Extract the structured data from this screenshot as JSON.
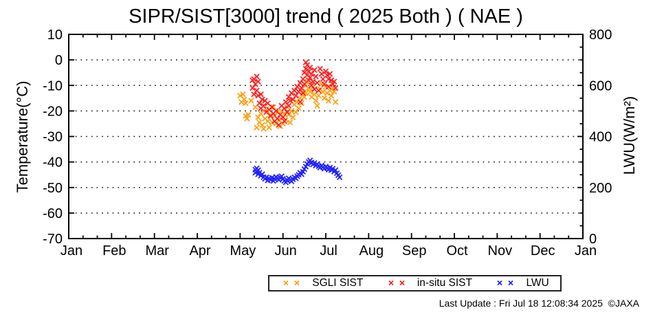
{
  "page": {
    "footer": "Last Update : Fri Jul 18 12:08:34 2025  ©JAXA"
  },
  "chart_data": {
    "type": "scatter",
    "title": "SIPR/SIST[3000] trend ( 2025 Both ) ( NAE )",
    "grid": "horizontal dotted lines at left-axis major ticks",
    "x_axis": {
      "label": "",
      "tick_labels": [
        "Jan",
        "Feb",
        "Mar",
        "Apr",
        "May",
        "Jun",
        "Jul",
        "Aug",
        "Sep",
        "Oct",
        "Nov",
        "Dec",
        "Jan"
      ],
      "minor_ticks_per_month": 2
    },
    "y_left_axis": {
      "label": "Temperature(°C)",
      "range": [
        -70,
        10
      ],
      "ticks": [
        10,
        0,
        -10,
        -20,
        -30,
        -40,
        -50,
        -60,
        -70
      ],
      "grid_at": [
        0,
        -10,
        -20,
        -30,
        -40,
        -50,
        -60
      ]
    },
    "y_right_axis": {
      "label": "LWU(W/m²)",
      "range": [
        0,
        800
      ],
      "labeled_ticks": [
        800,
        600,
        400,
        200,
        0
      ],
      "minor_tick_step": 50
    },
    "legend": {
      "position": "below-chart",
      "entries": [
        {
          "label": "SGLI SIST",
          "color": "#ffa014",
          "marker": "x"
        },
        {
          "label": "in-situ SIST",
          "color": "#ff2020",
          "marker": "x"
        },
        {
          "label": "LWU",
          "color": "#2222ff",
          "marker": "x"
        }
      ]
    },
    "series": [
      {
        "name": "SGLI SIST",
        "axis": "left",
        "marker": "x",
        "color": "#ffa014",
        "points": [
          [
            "May 1",
            -14
          ],
          [
            "May 2",
            -16.5
          ],
          [
            "May 3",
            -13.5
          ],
          [
            "May 4",
            -15.5
          ],
          [
            "May 5",
            -17
          ],
          [
            "May 5",
            -22
          ],
          [
            "May 6",
            -23
          ],
          [
            "May 7",
            -21.5
          ],
          [
            "May 9",
            -16
          ],
          [
            "May 12",
            -18.5
          ],
          [
            "May 13",
            -26.5
          ],
          [
            "May 14",
            -22.5
          ],
          [
            "May 15",
            -24.5
          ],
          [
            "May 16",
            -21
          ],
          [
            "May 17",
            -25.5
          ],
          [
            "May 18",
            -27
          ],
          [
            "May 19",
            -23
          ],
          [
            "May 20",
            -19.5
          ],
          [
            "May 21",
            -24
          ],
          [
            "May 22",
            -26.5
          ],
          [
            "May 23",
            -21.5
          ],
          [
            "May 24",
            -24.5
          ],
          [
            "May 25",
            -18.5
          ],
          [
            "May 26",
            -22
          ],
          [
            "May 27",
            -25
          ],
          [
            "May 28",
            -20.5
          ],
          [
            "May 29",
            -23.5
          ],
          [
            "May 30",
            -26
          ],
          [
            "May 31",
            -20
          ],
          [
            "Jun 1",
            -25
          ],
          [
            "Jun 2",
            -21
          ],
          [
            "Jun 3",
            -23.5
          ],
          [
            "Jun 4",
            -18.5
          ],
          [
            "Jun 5",
            -21.5
          ],
          [
            "Jun 6",
            -24.5
          ],
          [
            "Jun 7",
            -20
          ],
          [
            "Jun 8",
            -22.5
          ],
          [
            "Jun 9",
            -17.5
          ],
          [
            "Jun 10",
            -20.5
          ],
          [
            "Jun 11",
            -16.5
          ],
          [
            "Jun 12",
            -19
          ],
          [
            "Jun 13",
            -15
          ],
          [
            "Jun 14",
            -17
          ],
          [
            "Jun 15",
            -12.5
          ],
          [
            "Jun 16",
            -14.5
          ],
          [
            "Jun 17",
            -10
          ],
          [
            "Jun 17",
            -13
          ],
          [
            "Jun 18",
            -8.5
          ],
          [
            "Jun 19",
            -11
          ],
          [
            "Jun 20",
            -12.5
          ],
          [
            "Jun 21",
            -14.5
          ],
          [
            "Jun 22",
            -10.5
          ],
          [
            "Jun 23",
            -13.5
          ],
          [
            "Jun 24",
            -16
          ],
          [
            "Jun 25",
            -18
          ],
          [
            "Jun 26",
            -14
          ],
          [
            "Jun 27",
            -11.5
          ],
          [
            "Jun 28",
            -9.5
          ],
          [
            "Jun 29",
            -12.5
          ],
          [
            "Jun 30",
            -15
          ],
          [
            "Jul 1",
            -10.5
          ],
          [
            "Jul 2",
            -13
          ],
          [
            "Jul 3",
            -16
          ],
          [
            "Jul 4",
            -12
          ],
          [
            "Jul 5",
            -14
          ],
          [
            "Jul 6",
            -11
          ],
          [
            "Jul 7",
            -12.5
          ],
          [
            "Jul 8",
            -16.5
          ]
        ]
      },
      {
        "name": "in-situ SIST",
        "axis": "left",
        "marker": "x",
        "color": "#ff2020",
        "points": [
          [
            "May 10",
            -8
          ],
          [
            "May 10",
            -11
          ],
          [
            "May 11",
            -13.5
          ],
          [
            "May 11",
            -7.5
          ],
          [
            "May 12",
            -9.5
          ],
          [
            "May 13",
            -6.5
          ],
          [
            "May 13",
            -12
          ],
          [
            "May 14",
            -8.5
          ],
          [
            "May 14",
            -14
          ],
          [
            "May 15",
            -17
          ],
          [
            "May 16",
            -13.5
          ],
          [
            "May 16",
            -19
          ],
          [
            "May 17",
            -15.5
          ],
          [
            "May 18",
            -18
          ],
          [
            "May 19",
            -16
          ],
          [
            "May 20",
            -20.5
          ],
          [
            "May 21",
            -17
          ],
          [
            "May 22",
            -19.5
          ],
          [
            "May 23",
            -22
          ],
          [
            "May 24",
            -18.5
          ],
          [
            "May 25",
            -21
          ],
          [
            "May 26",
            -24
          ],
          [
            "May 27",
            -20
          ],
          [
            "May 28",
            -23
          ],
          [
            "May 29",
            -25.5
          ],
          [
            "May 30",
            -21.5
          ],
          [
            "May 31",
            -18
          ],
          [
            "Jun 1",
            -22.5
          ],
          [
            "Jun 2",
            -19
          ],
          [
            "Jun 2",
            -24
          ],
          [
            "Jun 3",
            -16.5
          ],
          [
            "Jun 4",
            -20.5
          ],
          [
            "Jun 5",
            -14.5
          ],
          [
            "Jun 5",
            -18
          ],
          [
            "Jun 6",
            -16
          ],
          [
            "Jun 7",
            -13
          ],
          [
            "Jun 8",
            -15.5
          ],
          [
            "Jun 9",
            -12
          ],
          [
            "Jun 10",
            -14
          ],
          [
            "Jun 11",
            -10.5
          ],
          [
            "Jun 12",
            -12.5
          ],
          [
            "Jun 13",
            -9
          ],
          [
            "Jun 13",
            -16.5
          ],
          [
            "Jun 14",
            -11
          ],
          [
            "Jun 15",
            -7.5
          ],
          [
            "Jun 15",
            -13
          ],
          [
            "Jun 16",
            -5
          ],
          [
            "Jun 16",
            -9.5
          ],
          [
            "Jun 17",
            -1
          ],
          [
            "Jun 17",
            -3.5
          ],
          [
            "Jun 18",
            -2
          ],
          [
            "Jun 18",
            -6
          ],
          [
            "Jun 19",
            -4.5
          ],
          [
            "Jun 19",
            -8
          ],
          [
            "Jun 20",
            -3
          ],
          [
            "Jun 20",
            -7
          ],
          [
            "Jun 21",
            -5.5
          ],
          [
            "Jun 21",
            -10
          ],
          [
            "Jun 22",
            -8.5
          ],
          [
            "Jun 23",
            -4
          ],
          [
            "Jun 23",
            -11.5
          ],
          [
            "Jun 24",
            -6.5
          ],
          [
            "Jun 25",
            -9
          ],
          [
            "Jun 26",
            -12
          ],
          [
            "Jun 27",
            -3.5
          ],
          [
            "Jun 28",
            -5.5
          ],
          [
            "Jun 29",
            -7.5
          ],
          [
            "Jun 30",
            -9.5
          ],
          [
            "Jul 1",
            -4.5
          ],
          [
            "Jul 2",
            -6
          ],
          [
            "Jul 3",
            -7.5
          ],
          [
            "Jul 3",
            -10.5
          ],
          [
            "Jul 4",
            -5.5
          ],
          [
            "Jul 5",
            -8
          ],
          [
            "Jul 6",
            -9.5
          ],
          [
            "Jul 7",
            -8.5
          ],
          [
            "Jul 8",
            -11
          ]
        ]
      },
      {
        "name": "LWU",
        "axis": "right",
        "marker": "x",
        "color": "#2222ff",
        "points": [
          [
            "May 12",
            270
          ],
          [
            "May 12",
            258
          ],
          [
            "May 13",
            275
          ],
          [
            "May 13",
            262
          ],
          [
            "May 14",
            268
          ],
          [
            "May 14",
            252
          ],
          [
            "May 15",
            258
          ],
          [
            "May 16",
            246
          ],
          [
            "May 17",
            252
          ],
          [
            "May 18",
            240
          ],
          [
            "May 19",
            234
          ],
          [
            "May 20",
            240
          ],
          [
            "May 21",
            228
          ],
          [
            "May 22",
            236
          ],
          [
            "May 23",
            230
          ],
          [
            "May 24",
            238
          ],
          [
            "May 25",
            226
          ],
          [
            "May 26",
            234
          ],
          [
            "May 27",
            242
          ],
          [
            "May 28",
            236
          ],
          [
            "May 29",
            230
          ],
          [
            "May 30",
            238
          ],
          [
            "May 31",
            244
          ],
          [
            "Jun 1",
            234
          ],
          [
            "Jun 2",
            226
          ],
          [
            "Jun 3",
            220
          ],
          [
            "Jun 4",
            228
          ],
          [
            "Jun 5",
            236
          ],
          [
            "Jun 6",
            230
          ],
          [
            "Jun 7",
            224
          ],
          [
            "Jun 8",
            232
          ],
          [
            "Jun 9",
            240
          ],
          [
            "Jun 10",
            236
          ],
          [
            "Jun 11",
            244
          ],
          [
            "Jun 12",
            250
          ],
          [
            "Jun 13",
            258
          ],
          [
            "Jun 14",
            252
          ],
          [
            "Jun 15",
            262
          ],
          [
            "Jun 16",
            272
          ],
          [
            "Jun 17",
            282
          ],
          [
            "Jun 18",
            292
          ],
          [
            "Jun 19",
            300
          ],
          [
            "Jun 20",
            306
          ],
          [
            "Jun 21",
            298
          ],
          [
            "Jun 22",
            290
          ],
          [
            "Jun 23",
            296
          ],
          [
            "Jun 24",
            286
          ],
          [
            "Jun 25",
            292
          ],
          [
            "Jun 26",
            284
          ],
          [
            "Jun 27",
            278
          ],
          [
            "Jun 28",
            286
          ],
          [
            "Jun 29",
            280
          ],
          [
            "Jun 30",
            274
          ],
          [
            "Jul 1",
            282
          ],
          [
            "Jul 2",
            276
          ],
          [
            "Jul 3",
            270
          ],
          [
            "Jul 4",
            278
          ],
          [
            "Jul 5",
            268
          ],
          [
            "Jul 6",
            274
          ],
          [
            "Jul 7",
            262
          ],
          [
            "Jul 8",
            268
          ],
          [
            "Jul 9",
            256
          ],
          [
            "Jul 10",
            248
          ],
          [
            "Jul 11",
            240
          ]
        ]
      }
    ]
  }
}
